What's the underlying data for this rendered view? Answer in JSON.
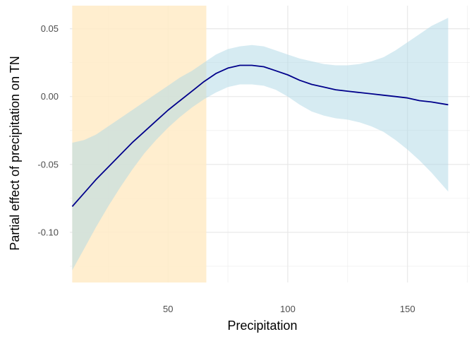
{
  "chart_data": {
    "type": "line",
    "title": "",
    "xlabel": "Precipitation",
    "ylabel": "Partial effect of precipitation on TN",
    "xlim": [
      9,
      176
    ],
    "ylim": [
      -0.137,
      0.067
    ],
    "x_ticks": [
      50,
      100,
      150
    ],
    "x_tick_labels": [
      "50",
      "100",
      "150"
    ],
    "y_ticks": [
      0.05,
      0.0,
      -0.05,
      -0.1
    ],
    "y_tick_labels": [
      "0.05",
      "0.00",
      "-0.05",
      "-0.10"
    ],
    "grid": true,
    "legend": "none",
    "highlight_band": {
      "x_range": [
        10,
        66
      ],
      "color": "#ffebc7"
    },
    "series": [
      {
        "type": "line",
        "color": "#00008b",
        "x": [
          10,
          15,
          20,
          25,
          30,
          35,
          40,
          45,
          50,
          55,
          60,
          65,
          70,
          75,
          80,
          85,
          90,
          95,
          100,
          105,
          110,
          115,
          120,
          125,
          130,
          135,
          140,
          145,
          150,
          155,
          160,
          167
        ],
        "y": [
          -0.081,
          -0.071,
          -0.061,
          -0.052,
          -0.043,
          -0.034,
          -0.026,
          -0.018,
          -0.01,
          -0.003,
          0.004,
          0.011,
          0.017,
          0.021,
          0.023,
          0.023,
          0.022,
          0.019,
          0.016,
          0.012,
          0.009,
          0.007,
          0.005,
          0.004,
          0.003,
          0.002,
          0.001,
          -0.0,
          -0.001,
          -0.003,
          -0.004,
          -0.006
        ]
      }
    ],
    "confidence_band": {
      "color": "#add8e6",
      "x": [
        10,
        15,
        20,
        25,
        30,
        35,
        40,
        45,
        50,
        55,
        60,
        65,
        70,
        75,
        80,
        85,
        90,
        95,
        100,
        105,
        110,
        115,
        120,
        125,
        130,
        135,
        140,
        145,
        150,
        155,
        160,
        167
      ],
      "lower": [
        -0.128,
        -0.112,
        -0.096,
        -0.081,
        -0.067,
        -0.054,
        -0.042,
        -0.032,
        -0.023,
        -0.015,
        -0.008,
        -0.002,
        0.003,
        0.007,
        0.009,
        0.009,
        0.008,
        0.005,
        0.0,
        -0.006,
        -0.011,
        -0.014,
        -0.016,
        -0.017,
        -0.019,
        -0.022,
        -0.026,
        -0.032,
        -0.039,
        -0.047,
        -0.056,
        -0.07
      ],
      "upper": [
        -0.034,
        -0.032,
        -0.028,
        -0.022,
        -0.016,
        -0.01,
        -0.004,
        0.002,
        0.008,
        0.014,
        0.019,
        0.025,
        0.031,
        0.035,
        0.037,
        0.038,
        0.037,
        0.034,
        0.031,
        0.028,
        0.026,
        0.024,
        0.023,
        0.023,
        0.024,
        0.026,
        0.029,
        0.034,
        0.04,
        0.046,
        0.052,
        0.058
      ]
    }
  }
}
